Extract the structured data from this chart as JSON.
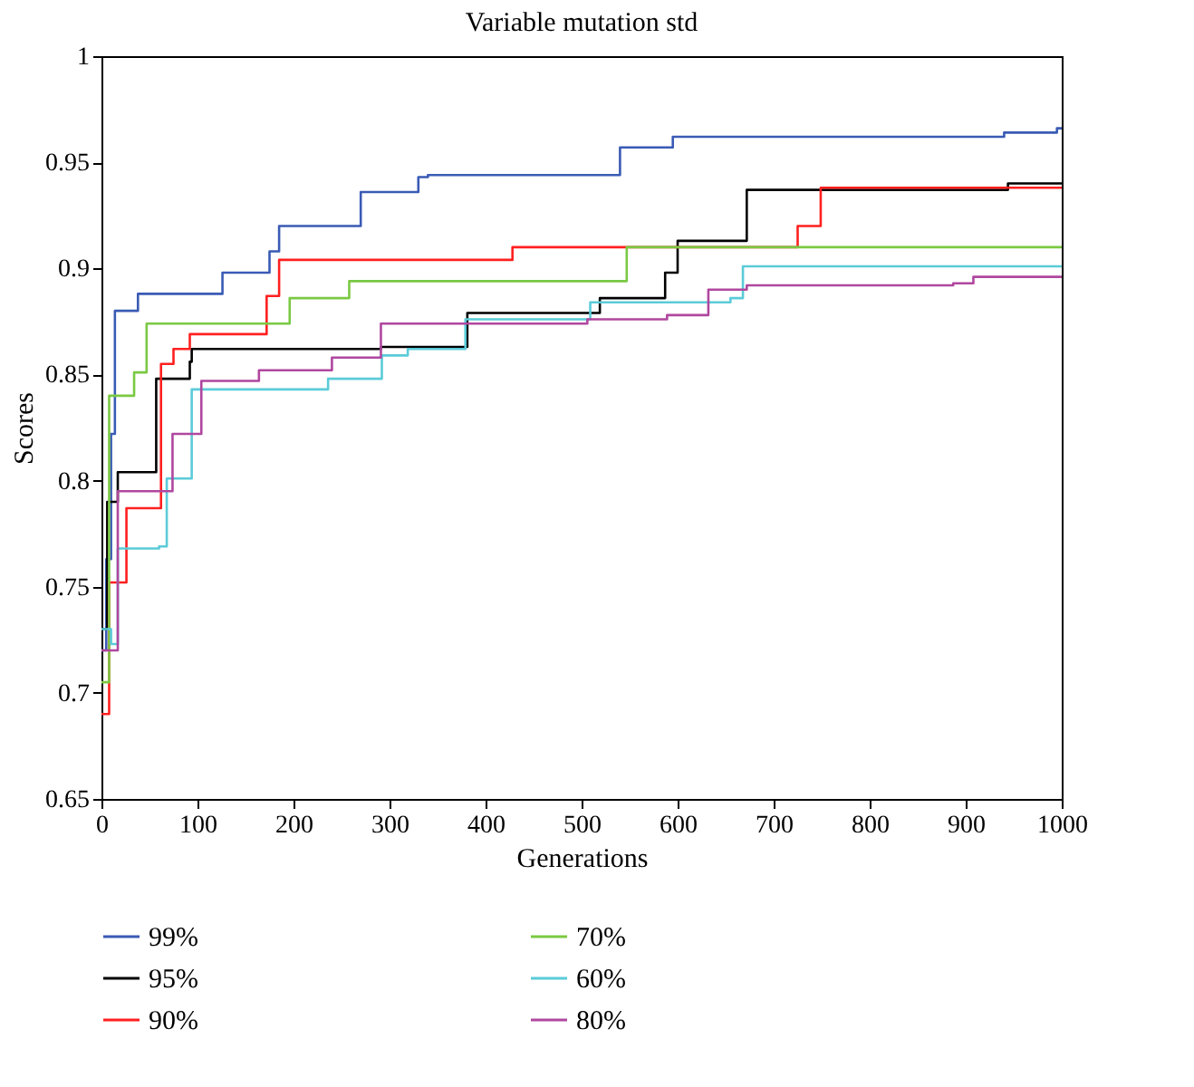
{
  "chart_data": {
    "type": "step",
    "title": "Variable mutation std",
    "xlabel": "Generations",
    "ylabel": "Scores",
    "xlim": [
      0,
      1000
    ],
    "xticks": [
      0,
      100,
      200,
      300,
      400,
      500,
      600,
      700,
      800,
      900,
      1000
    ],
    "ylim": [
      0.65,
      1
    ],
    "yticks": [
      0.65,
      0.7,
      0.75,
      0.8,
      0.85,
      0.9,
      0.95,
      1
    ],
    "grid": false,
    "legend": "bottom",
    "line_style": "solid",
    "marker": "none",
    "series": [
      {
        "name": "99%",
        "color": "#3a5bb5",
        "x": [
          0,
          5,
          10,
          14,
          38,
          126,
          175,
          185,
          270,
          330,
          340,
          540,
          595,
          940,
          995,
          1000
        ],
        "values": [
          0.72,
          0.763,
          0.822,
          0.88,
          0.888,
          0.898,
          0.908,
          0.92,
          0.936,
          0.943,
          0.944,
          0.957,
          0.962,
          0.964,
          0.966,
          0.966
        ]
      },
      {
        "name": "95%",
        "color": "#000000",
        "x": [
          0,
          6,
          17,
          57,
          92,
          94,
          291,
          381,
          519,
          587,
          600,
          672,
          944,
          1000
        ],
        "values": [
          0.73,
          0.79,
          0.804,
          0.848,
          0.856,
          0.862,
          0.863,
          0.879,
          0.886,
          0.898,
          0.913,
          0.937,
          0.94,
          0.94
        ]
      },
      {
        "name": "90%",
        "color": "#ff2020",
        "x": [
          0,
          8,
          26,
          62,
          75,
          92,
          172,
          185,
          428,
          725,
          749,
          1000
        ],
        "values": [
          0.69,
          0.752,
          0.787,
          0.855,
          0.862,
          0.869,
          0.887,
          0.904,
          0.91,
          0.92,
          0.938,
          0.938
        ]
      },
      {
        "name": "70%",
        "color": "#7ac943",
        "x": [
          0,
          8,
          34,
          47,
          196,
          258,
          547,
          1000
        ],
        "values": [
          0.705,
          0.84,
          0.851,
          0.874,
          0.886,
          0.894,
          0.91,
          0.91
        ]
      },
      {
        "name": "60%",
        "color": "#5bcbd8",
        "x": [
          0,
          10,
          17,
          60,
          68,
          94,
          236,
          292,
          319,
          379,
          509,
          655,
          668,
          1000
        ],
        "values": [
          0.73,
          0.723,
          0.768,
          0.769,
          0.801,
          0.843,
          0.848,
          0.859,
          0.862,
          0.876,
          0.884,
          0.886,
          0.901,
          0.901
        ]
      },
      {
        "name": "80%",
        "color": "#b0479f",
        "x": [
          0,
          17,
          74,
          104,
          164,
          240,
          291,
          506,
          589,
          632,
          672,
          887,
          908,
          1000
        ],
        "values": [
          0.72,
          0.795,
          0.822,
          0.847,
          0.852,
          0.858,
          0.874,
          0.876,
          0.878,
          0.89,
          0.892,
          0.893,
          0.896,
          0.896
        ]
      }
    ]
  }
}
